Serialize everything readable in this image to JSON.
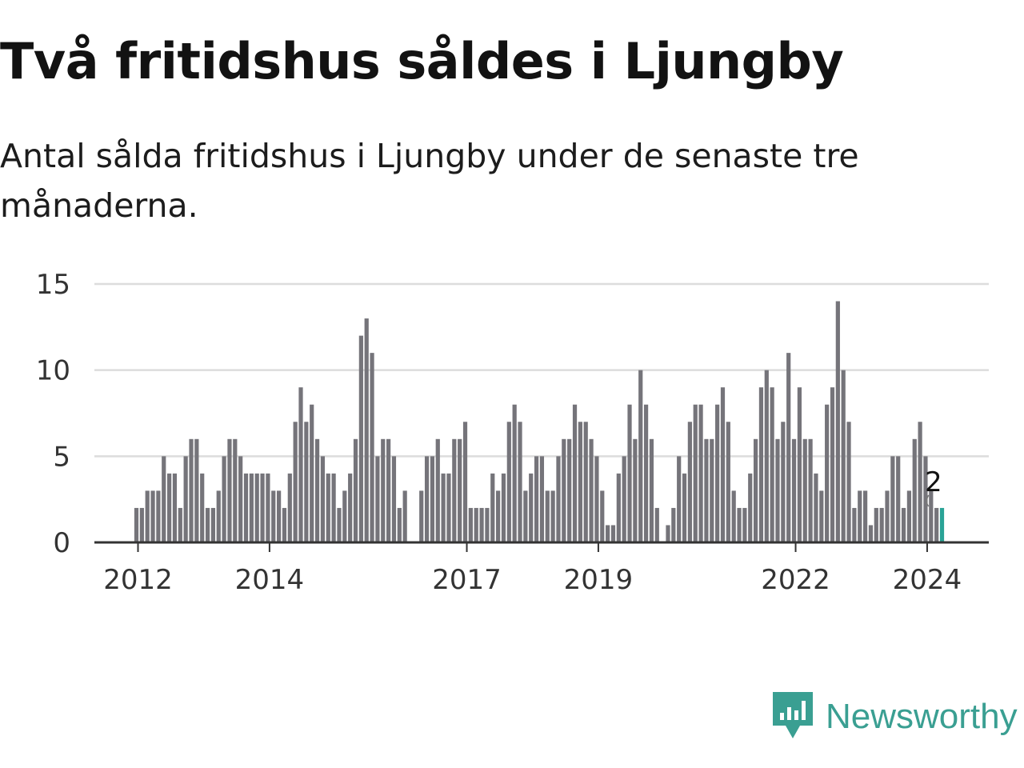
{
  "header": {
    "title": "Två fritidshus såldes i Ljungby",
    "subtitle": "Antal sålda fritidshus i Ljungby under de senaste tre månaderna."
  },
  "brand": {
    "name": "Newsworthy",
    "icon": "newsworthy-logo-icon",
    "color": "#3a9f92"
  },
  "colors": {
    "bar": "#75747a",
    "highlight": "#2aa396",
    "grid": "#dcdcdc",
    "axis": "#333333"
  },
  "chart_data": {
    "type": "bar",
    "title": "Två fritidshus såldes i Ljungby",
    "xlabel": "",
    "ylabel": "",
    "ylim": [
      0,
      15
    ],
    "yticks": [
      0,
      5,
      10,
      15
    ],
    "xticks": [
      "2012",
      "2014",
      "2017",
      "2019",
      "2022",
      "2024"
    ],
    "grid": true,
    "legend": "none",
    "x_start": "2012-01",
    "x_end": "2024-02",
    "series": [
      {
        "values": [
          2,
          2,
          3,
          3,
          3,
          5,
          4,
          4,
          2,
          5,
          6,
          6,
          4,
          2,
          2,
          3,
          5,
          6,
          6,
          5,
          4,
          4,
          4,
          4,
          4,
          3,
          3,
          2,
          4,
          7,
          9,
          7,
          8,
          6,
          5,
          4,
          4,
          2,
          3,
          4,
          6,
          12,
          13,
          11,
          5,
          6,
          6,
          5,
          2,
          3,
          null,
          null,
          3,
          5,
          5,
          6,
          4,
          4,
          6,
          6,
          7,
          2,
          2,
          2,
          2,
          4,
          3,
          4,
          7,
          8,
          7,
          3,
          4,
          5,
          5,
          3,
          3,
          5,
          6,
          6,
          8,
          7,
          7,
          6,
          5,
          3,
          1,
          1,
          4,
          5,
          8,
          6,
          10,
          8,
          6,
          2,
          null,
          1,
          2,
          5,
          4,
          7,
          8,
          8,
          6,
          6,
          8,
          9,
          7,
          3,
          2,
          2,
          4,
          6,
          9,
          10,
          9,
          6,
          7,
          11,
          6,
          9,
          6,
          6,
          4,
          3,
          8,
          9,
          14,
          10,
          7,
          2,
          3,
          3,
          1,
          2,
          2,
          3,
          5,
          5,
          2,
          3,
          6,
          7,
          5,
          3,
          2,
          2
        ]
      }
    ],
    "annotations": [
      {
        "x": "2024-02",
        "y": 2,
        "text": "2"
      }
    ]
  }
}
